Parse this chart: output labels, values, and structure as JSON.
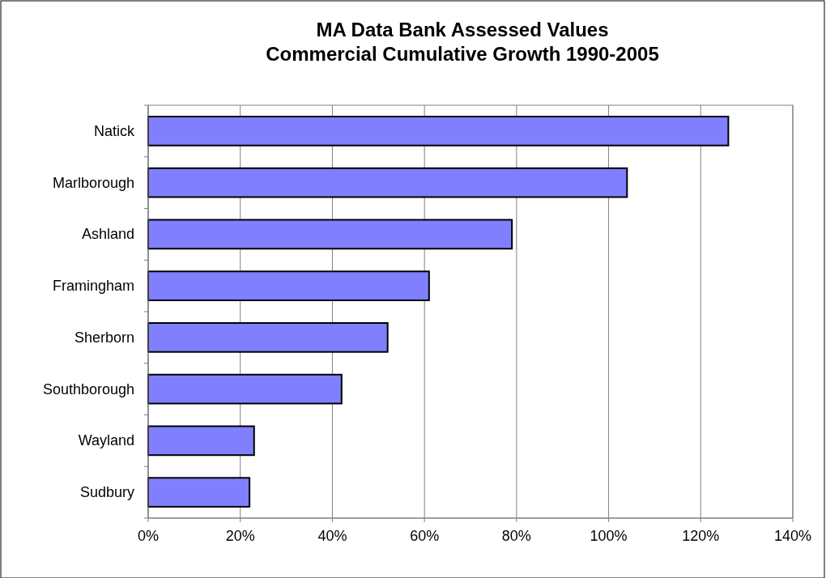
{
  "chart_data": {
    "type": "bar",
    "orientation": "horizontal",
    "title": "MA Data Bank Assessed Values\nCommercial Cumulative Growth 1990-2005",
    "categories": [
      "Natick",
      "Marlborough",
      "Ashland",
      "Framingham",
      "Sherborn",
      "Southborough",
      "Wayland",
      "Sudbury"
    ],
    "values": [
      126,
      104,
      79,
      61,
      52,
      42,
      23,
      22
    ],
    "color": "#8080ff",
    "xlim": [
      0,
      140
    ],
    "xticks": [
      {
        "value": 0,
        "label": "0%"
      },
      {
        "value": 20,
        "label": "20%"
      },
      {
        "value": 40,
        "label": "40%"
      },
      {
        "value": 60,
        "label": "60%"
      },
      {
        "value": 80,
        "label": "80%"
      },
      {
        "value": 100,
        "label": "100%"
      },
      {
        "value": 120,
        "label": "120%"
      },
      {
        "value": 140,
        "label": "140%"
      }
    ],
    "grid": "x"
  }
}
